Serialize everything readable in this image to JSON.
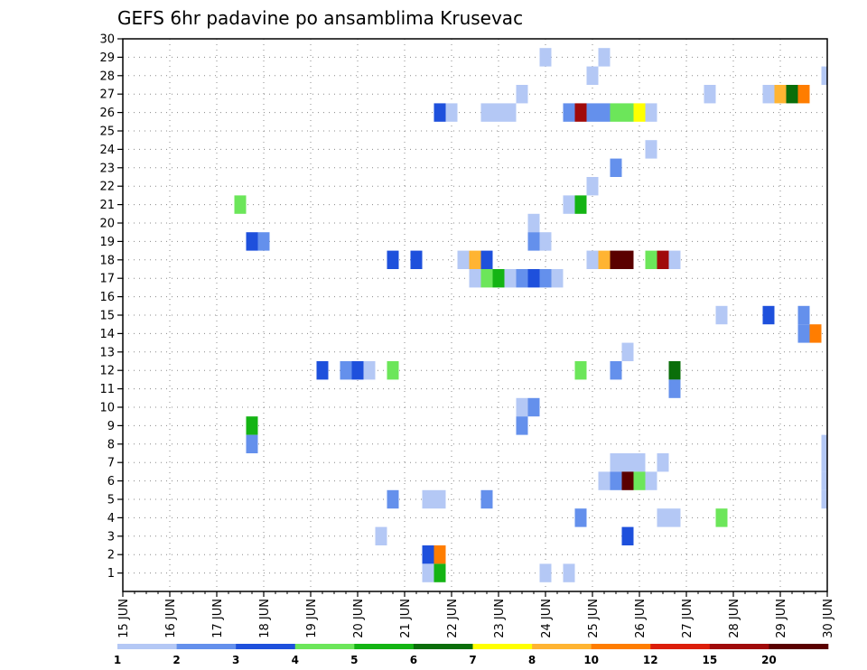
{
  "chart_data": {
    "type": "heatmap",
    "title": "GEFS 6hr padavine po ansamblima Krusevac",
    "x_tick_labels": [
      "15 JUN",
      "16 JUN",
      "17 JUN",
      "18 JUN",
      "19 JUN",
      "20 JUN",
      "21 JUN",
      "22 JUN",
      "23 JUN",
      "24 JUN",
      "25 JUN",
      "26 JUN",
      "27 JUN",
      "28 JUN",
      "29 JUN",
      "30 JUN"
    ],
    "xlim": [
      15,
      30
    ],
    "ylim": [
      0,
      30
    ],
    "y_ticks": [
      1,
      2,
      3,
      4,
      5,
      6,
      7,
      8,
      9,
      10,
      11,
      12,
      13,
      14,
      15,
      16,
      17,
      18,
      19,
      20,
      21,
      22,
      23,
      24,
      25,
      26,
      27,
      28,
      29,
      30
    ],
    "grid": true,
    "legend": {
      "placement": "bottom",
      "colors": [
        "#b4c8f5",
        "#6490ec",
        "#1e50dc",
        "#6ce65a",
        "#14b414",
        "#0a6e0a",
        "#ffff00",
        "#ffb432",
        "#ff7d00",
        "#dc1e0a",
        "#a00a0a",
        "#5a0000"
      ],
      "boundaries": [
        "1",
        "2",
        "3",
        "4",
        "5",
        "6",
        "7",
        "8",
        "10",
        "12",
        "15",
        "20"
      ]
    },
    "cells": [
      {
        "member": 29,
        "x": 24.0,
        "v": 1
      },
      {
        "member": 29,
        "x": 25.25,
        "v": 1
      },
      {
        "member": 28,
        "x": 25.0,
        "v": 1
      },
      {
        "member": 28,
        "x": 30.0,
        "v": 1
      },
      {
        "member": 27,
        "x": 23.5,
        "v": 1
      },
      {
        "member": 27,
        "x": 27.5,
        "v": 1
      },
      {
        "member": 27,
        "x": 28.75,
        "v": 1
      },
      {
        "member": 27,
        "x": 29.0,
        "v": 8
      },
      {
        "member": 27,
        "x": 29.25,
        "v": 6
      },
      {
        "member": 27,
        "x": 29.5,
        "v": 10
      },
      {
        "member": 26,
        "x": 21.75,
        "v": 3
      },
      {
        "member": 26,
        "x": 22.0,
        "v": 1
      },
      {
        "member": 26,
        "x": 22.75,
        "v": 1
      },
      {
        "member": 26,
        "x": 23.0,
        "v": 1
      },
      {
        "member": 26,
        "x": 23.25,
        "v": 1
      },
      {
        "member": 26,
        "x": 24.5,
        "v": 2
      },
      {
        "member": 26,
        "x": 24.75,
        "v": 15
      },
      {
        "member": 26,
        "x": 25.0,
        "v": 2
      },
      {
        "member": 26,
        "x": 25.25,
        "v": 2
      },
      {
        "member": 26,
        "x": 25.5,
        "v": 4
      },
      {
        "member": 26,
        "x": 25.75,
        "v": 4
      },
      {
        "member": 26,
        "x": 26.0,
        "v": 7
      },
      {
        "member": 26,
        "x": 26.25,
        "v": 1
      },
      {
        "member": 24,
        "x": 26.25,
        "v": 1
      },
      {
        "member": 23,
        "x": 25.5,
        "v": 2
      },
      {
        "member": 22,
        "x": 25.0,
        "v": 1
      },
      {
        "member": 21,
        "x": 17.5,
        "v": 4
      },
      {
        "member": 21,
        "x": 24.5,
        "v": 1
      },
      {
        "member": 21,
        "x": 24.75,
        "v": 5
      },
      {
        "member": 20,
        "x": 23.75,
        "v": 1
      },
      {
        "member": 19,
        "x": 17.75,
        "v": 3
      },
      {
        "member": 19,
        "x": 18.0,
        "v": 2
      },
      {
        "member": 19,
        "x": 23.75,
        "v": 2
      },
      {
        "member": 19,
        "x": 24.0,
        "v": 1
      },
      {
        "member": 18,
        "x": 20.75,
        "v": 3
      },
      {
        "member": 18,
        "x": 21.25,
        "v": 3
      },
      {
        "member": 18,
        "x": 22.25,
        "v": 1
      },
      {
        "member": 18,
        "x": 22.5,
        "v": 8
      },
      {
        "member": 18,
        "x": 22.75,
        "v": 3
      },
      {
        "member": 18,
        "x": 25.0,
        "v": 1
      },
      {
        "member": 18,
        "x": 25.25,
        "v": 8
      },
      {
        "member": 18,
        "x": 25.5,
        "v": 20
      },
      {
        "member": 18,
        "x": 25.75,
        "v": 20
      },
      {
        "member": 18,
        "x": 26.25,
        "v": 4
      },
      {
        "member": 18,
        "x": 26.5,
        "v": 15
      },
      {
        "member": 18,
        "x": 26.75,
        "v": 1
      },
      {
        "member": 17,
        "x": 22.5,
        "v": 1
      },
      {
        "member": 17,
        "x": 22.75,
        "v": 4
      },
      {
        "member": 17,
        "x": 23.0,
        "v": 5
      },
      {
        "member": 17,
        "x": 23.25,
        "v": 1
      },
      {
        "member": 17,
        "x": 23.5,
        "v": 2
      },
      {
        "member": 17,
        "x": 23.75,
        "v": 3
      },
      {
        "member": 17,
        "x": 24.0,
        "v": 2
      },
      {
        "member": 17,
        "x": 24.25,
        "v": 1
      },
      {
        "member": 15,
        "x": 27.75,
        "v": 1
      },
      {
        "member": 15,
        "x": 28.75,
        "v": 3
      },
      {
        "member": 15,
        "x": 29.5,
        "v": 2
      },
      {
        "member": 14,
        "x": 29.5,
        "v": 2
      },
      {
        "member": 14,
        "x": 29.75,
        "v": 10
      },
      {
        "member": 13,
        "x": 25.75,
        "v": 1
      },
      {
        "member": 12,
        "x": 19.25,
        "v": 3
      },
      {
        "member": 12,
        "x": 19.75,
        "v": 2
      },
      {
        "member": 12,
        "x": 20.0,
        "v": 3
      },
      {
        "member": 12,
        "x": 20.25,
        "v": 1
      },
      {
        "member": 12,
        "x": 20.75,
        "v": 4
      },
      {
        "member": 12,
        "x": 24.75,
        "v": 4
      },
      {
        "member": 12,
        "x": 25.5,
        "v": 2
      },
      {
        "member": 12,
        "x": 26.75,
        "v": 6
      },
      {
        "member": 11,
        "x": 26.75,
        "v": 2
      },
      {
        "member": 10,
        "x": 23.5,
        "v": 1
      },
      {
        "member": 10,
        "x": 23.75,
        "v": 2
      },
      {
        "member": 9,
        "x": 17.75,
        "v": 5
      },
      {
        "member": 9,
        "x": 23.5,
        "v": 2
      },
      {
        "member": 8,
        "x": 17.75,
        "v": 2
      },
      {
        "member": 8,
        "x": 30.0,
        "v": 1
      },
      {
        "member": 7,
        "x": 25.5,
        "v": 1
      },
      {
        "member": 7,
        "x": 25.75,
        "v": 1
      },
      {
        "member": 7,
        "x": 26.0,
        "v": 1
      },
      {
        "member": 7,
        "x": 26.5,
        "v": 1
      },
      {
        "member": 7,
        "x": 30.0,
        "v": 1
      },
      {
        "member": 6,
        "x": 25.25,
        "v": 1
      },
      {
        "member": 6,
        "x": 25.5,
        "v": 2
      },
      {
        "member": 6,
        "x": 25.75,
        "v": 20
      },
      {
        "member": 6,
        "x": 26.0,
        "v": 4
      },
      {
        "member": 6,
        "x": 26.25,
        "v": 1
      },
      {
        "member": 6,
        "x": 30.0,
        "v": 1
      },
      {
        "member": 5,
        "x": 20.75,
        "v": 2
      },
      {
        "member": 5,
        "x": 21.5,
        "v": 1
      },
      {
        "member": 5,
        "x": 21.75,
        "v": 1
      },
      {
        "member": 5,
        "x": 22.75,
        "v": 2
      },
      {
        "member": 5,
        "x": 30.0,
        "v": 1
      },
      {
        "member": 4,
        "x": 24.75,
        "v": 2
      },
      {
        "member": 4,
        "x": 26.5,
        "v": 1
      },
      {
        "member": 4,
        "x": 26.75,
        "v": 1
      },
      {
        "member": 4,
        "x": 27.75,
        "v": 4
      },
      {
        "member": 3,
        "x": 20.5,
        "v": 1
      },
      {
        "member": 3,
        "x": 25.75,
        "v": 3
      },
      {
        "member": 2,
        "x": 21.5,
        "v": 3
      },
      {
        "member": 2,
        "x": 21.75,
        "v": 10
      },
      {
        "member": 1,
        "x": 21.5,
        "v": 1
      },
      {
        "member": 1,
        "x": 21.75,
        "v": 5
      },
      {
        "member": 1,
        "x": 24.0,
        "v": 1
      },
      {
        "member": 1,
        "x": 24.5,
        "v": 1
      }
    ]
  }
}
